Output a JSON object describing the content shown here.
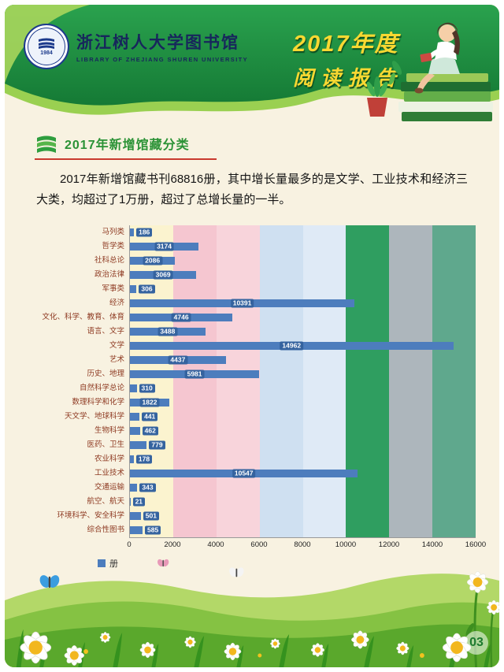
{
  "page": {
    "page_number": "03",
    "bg_color": "#f8f2e1"
  },
  "header": {
    "logo": {
      "emblem_year": "1984",
      "title_cn": "浙江树人大学图书馆",
      "title_en": "LIBRARY OF ZHEJIANG SHUREN UNIVERSITY"
    },
    "report_title_line1": "2017年度",
    "report_title_line2": "阅读报告"
  },
  "section": {
    "title": "2017年新增馆藏分类",
    "body": "2017年新增馆藏书刊68816册，其中增长量最多的是文学、工业技术和经济三大类，均超过了1万册，超过了总增长量的一半。"
  },
  "chart_data": {
    "type": "bar",
    "orientation": "horizontal",
    "title": "",
    "legend": "册",
    "legend_position": "bottom-left",
    "xlabel": "",
    "ylabel": "",
    "xlim": [
      0,
      16000
    ],
    "xticks": [
      0,
      2000,
      4000,
      6000,
      8000,
      10000,
      12000,
      14000,
      16000
    ],
    "categories": [
      "马列类",
      "哲学类",
      "社科总论",
      "政治法律",
      "军事类",
      "经济",
      "文化、科学、教育、体育",
      "语言、文字",
      "文学",
      "艺术",
      "历史、地理",
      "自然科学总论",
      "数理科学和化学",
      "天文学、地球科学",
      "生物科学",
      "医药、卫生",
      "农业科学",
      "工业技术",
      "交通运输",
      "航空、航天",
      "环境科学、安全科学",
      "综合性图书"
    ],
    "values": [
      186,
      3174,
      2086,
      3069,
      306,
      10391,
      4746,
      3488,
      14962,
      4437,
      5981,
      310,
      1822,
      441,
      462,
      779,
      178,
      10547,
      343,
      21,
      501,
      585
    ],
    "bar_color": "#4d7dbd",
    "label_bg_color": "#35639f",
    "band_colors": [
      "#fbf3cf",
      "#f5c6d0",
      "#f8d4db",
      "#cfe0f1",
      "#dfeaf6",
      "#2f9e60",
      "#adb6bc",
      "#5fa88d"
    ]
  }
}
